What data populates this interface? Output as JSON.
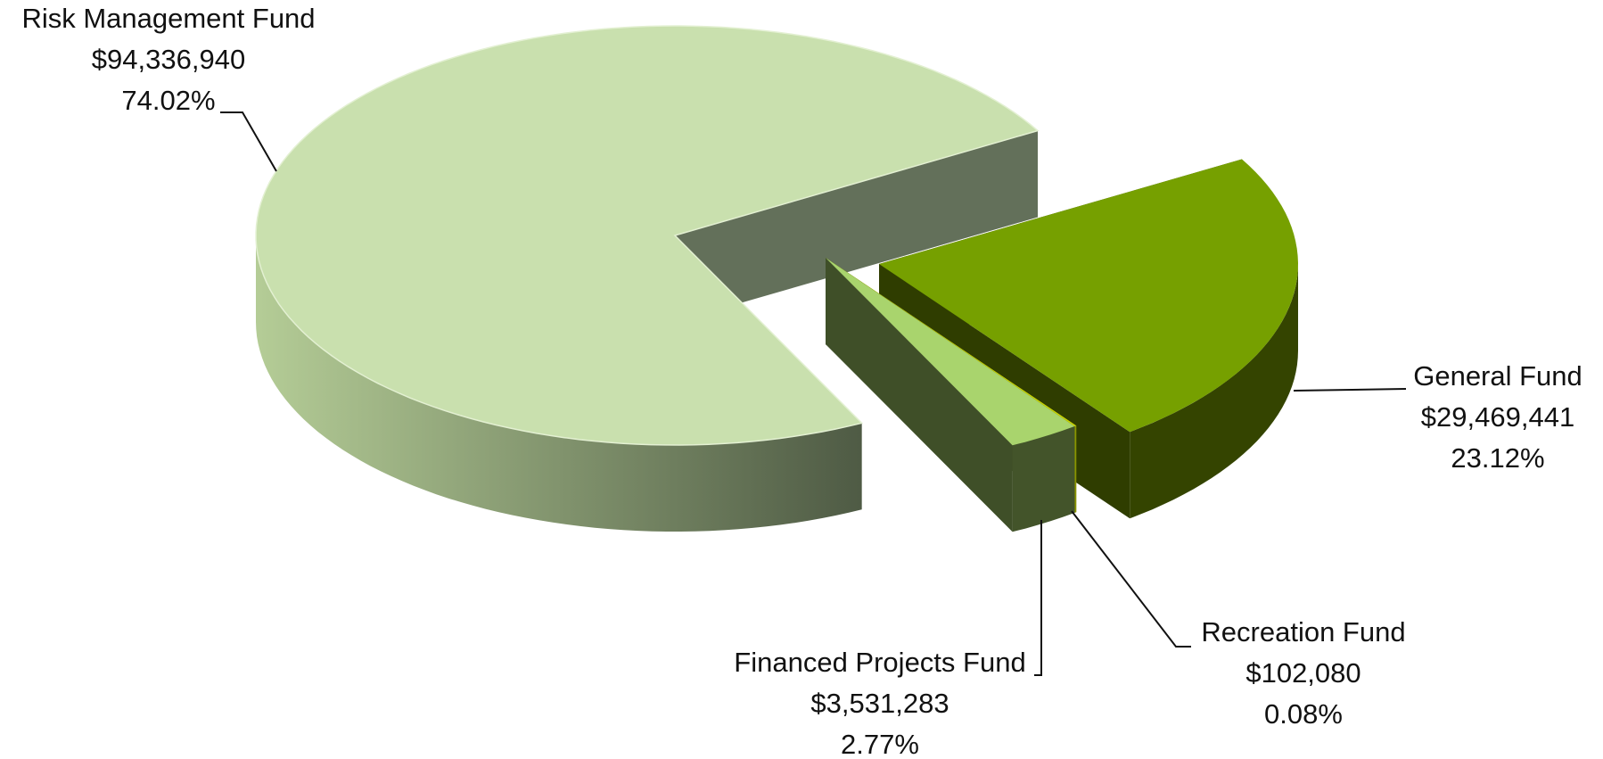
{
  "chart_data": {
    "type": "pie3d",
    "categories": [
      "General Fund",
      "Recreation Fund",
      "Financed Projects Fund",
      "Risk Management Fund"
    ],
    "values": [
      29469441,
      102080,
      3531283,
      94336940
    ],
    "value_labels": [
      "$29,469,441",
      "$102,080",
      "$3,531,283",
      "$94,336,940"
    ],
    "percents": [
      23.12,
      0.08,
      2.77,
      74.02
    ],
    "percent_labels": [
      "23.12%",
      "0.08%",
      "2.77%",
      "74.02%"
    ],
    "colors": [
      "#76a000",
      "#c8d400",
      "#a9d46d",
      "#c9e0ae"
    ]
  }
}
